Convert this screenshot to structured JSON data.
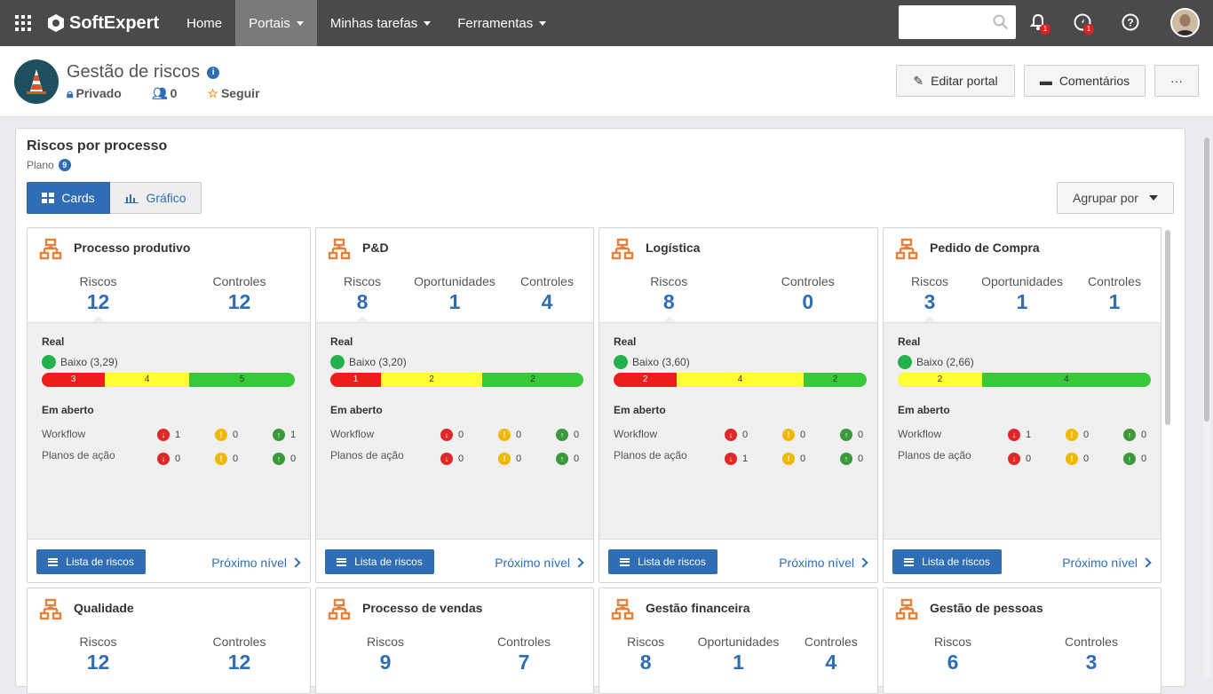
{
  "topbar": {
    "brand": "SoftExpert",
    "nav": [
      {
        "label": "Home",
        "active": false,
        "dropdown": false
      },
      {
        "label": "Portais",
        "active": true,
        "dropdown": true
      },
      {
        "label": "Minhas tarefas",
        "active": false,
        "dropdown": true
      },
      {
        "label": "Ferramentas",
        "active": false,
        "dropdown": true
      }
    ],
    "notification_badge": "1",
    "activity_badge": "1",
    "icons": [
      "apps-grid-icon",
      "search-icon",
      "bell-icon",
      "compass-icon",
      "help-icon",
      "avatar"
    ]
  },
  "header": {
    "title": "Gestão de riscos",
    "privacy": "Privado",
    "members": "0",
    "follow": "Seguir",
    "edit_label": "Editar portal",
    "comments_label": "Comentários",
    "more_label": "···"
  },
  "panel": {
    "title": "Riscos por processo",
    "subtitle": "Plano",
    "count": "9",
    "view_cards": "Cards",
    "view_chart": "Gráfico",
    "group_by": "Agrupar por"
  },
  "labels": {
    "real": "Real",
    "open": "Em aberto",
    "workflow": "Workflow",
    "action_plans": "Planos de ação",
    "risk_list": "Lista de riscos",
    "next_level": "Próximo nível"
  },
  "colors": {
    "accent": "#2f6db5",
    "low": "#22b14c",
    "high": "#ef1c1c",
    "medium": "#ffff33",
    "ok": "#38c93a"
  },
  "cards": [
    {
      "name": "Processo produtivo",
      "stats": [
        {
          "label": "Riscos",
          "value": "12"
        },
        {
          "label": "Controles",
          "value": "12"
        }
      ],
      "level": "Baixo (3,29)",
      "bar": [
        {
          "value": "3",
          "color": "r",
          "frac": 0.25
        },
        {
          "value": "4",
          "color": "y",
          "frac": 0.333
        },
        {
          "value": "5",
          "color": "g",
          "frac": 0.417
        }
      ],
      "workflow": [
        "1",
        "0",
        "1"
      ],
      "plans": [
        "0",
        "0",
        "0"
      ]
    },
    {
      "name": "P&D",
      "stats": [
        {
          "label": "Riscos",
          "value": "8"
        },
        {
          "label": "Oportunidades",
          "value": "1"
        },
        {
          "label": "Controles",
          "value": "4"
        }
      ],
      "level": "Baixo (3,20)",
      "bar": [
        {
          "value": "1",
          "color": "r",
          "frac": 0.2
        },
        {
          "value": "2",
          "color": "y",
          "frac": 0.4
        },
        {
          "value": "2",
          "color": "g",
          "frac": 0.4
        }
      ],
      "workflow": [
        "0",
        "0",
        "0"
      ],
      "plans": [
        "0",
        "0",
        "0"
      ]
    },
    {
      "name": "Logística",
      "stats": [
        {
          "label": "Riscos",
          "value": "8"
        },
        {
          "label": "Controles",
          "value": "0"
        }
      ],
      "level": "Baixo (3,60)",
      "bar": [
        {
          "value": "2",
          "color": "r",
          "frac": 0.25
        },
        {
          "value": "4",
          "color": "y",
          "frac": 0.5
        },
        {
          "value": "2",
          "color": "g",
          "frac": 0.25
        }
      ],
      "workflow": [
        "0",
        "0",
        "0"
      ],
      "plans": [
        "1",
        "0",
        "0"
      ]
    },
    {
      "name": "Pedido de Compra",
      "stats": [
        {
          "label": "Riscos",
          "value": "3"
        },
        {
          "label": "Oportunidades",
          "value": "1"
        },
        {
          "label": "Controles",
          "value": "1"
        }
      ],
      "level": "Baixo (2,66)",
      "bar": [
        {
          "value": "2",
          "color": "y",
          "frac": 0.333
        },
        {
          "value": "4",
          "color": "g",
          "frac": 0.667
        }
      ],
      "workflow": [
        "1",
        "0",
        "0"
      ],
      "plans": [
        "0",
        "0",
        "0"
      ]
    },
    {
      "name": "Qualidade",
      "stats": [
        {
          "label": "Riscos",
          "value": "12"
        },
        {
          "label": "Controles",
          "value": "12"
        }
      ]
    },
    {
      "name": "Processo de vendas",
      "stats": [
        {
          "label": "Riscos",
          "value": "9"
        },
        {
          "label": "Controles",
          "value": "7"
        }
      ]
    },
    {
      "name": "Gestão financeira",
      "stats": [
        {
          "label": "Riscos",
          "value": "8"
        },
        {
          "label": "Oportunidades",
          "value": "1"
        },
        {
          "label": "Controles",
          "value": "4"
        }
      ]
    },
    {
      "name": "Gestão de pessoas",
      "stats": [
        {
          "label": "Riscos",
          "value": "6"
        },
        {
          "label": "Controles",
          "value": "3"
        }
      ]
    }
  ]
}
